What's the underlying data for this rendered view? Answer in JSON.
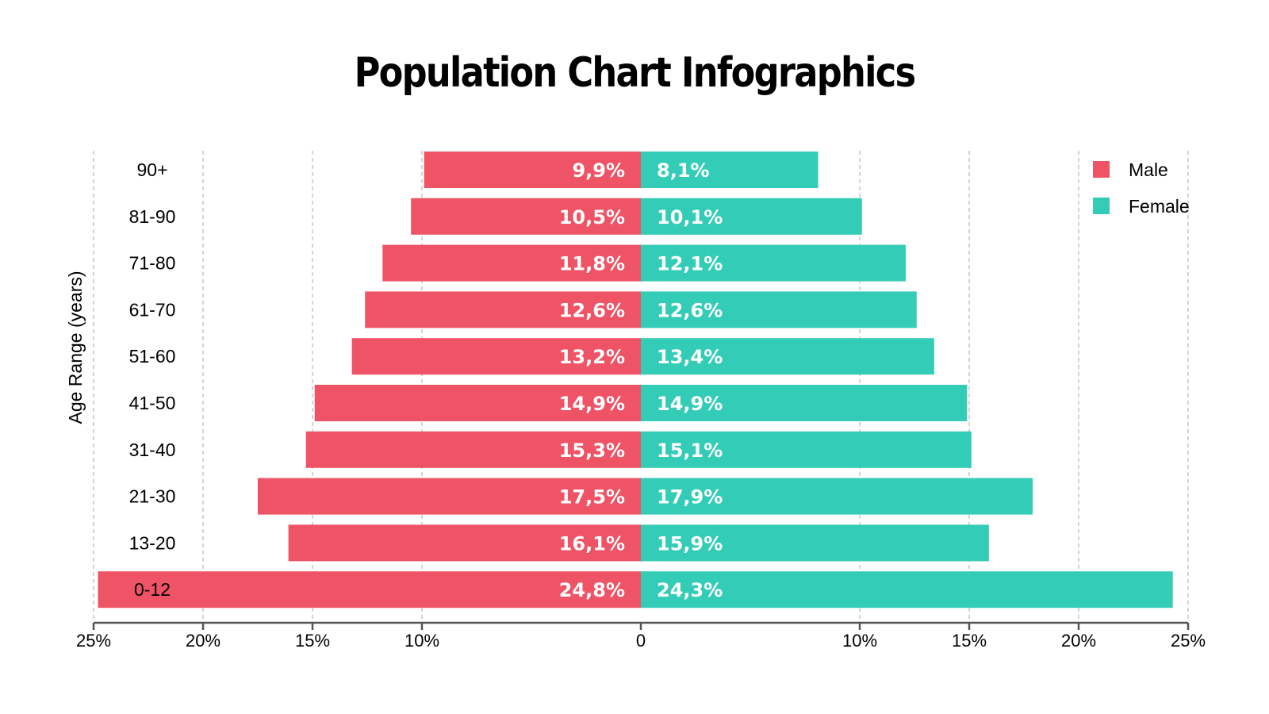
{
  "chart_data": {
    "type": "bar",
    "orientation": "horizontal-diverging",
    "title": "Population Chart Infographics",
    "ylabel": "Age Range (years)",
    "xlabel": "",
    "categories": [
      "90+",
      "81-90",
      "71-80",
      "61-70",
      "51-60",
      "41-50",
      "31-40",
      "21-30",
      "13-20",
      "0-12"
    ],
    "series": [
      {
        "name": "Male",
        "color": "#EE5366",
        "side": "left",
        "values": [
          9.9,
          10.5,
          11.8,
          12.6,
          13.2,
          14.9,
          15.3,
          17.5,
          16.1,
          24.8
        ],
        "labels": [
          "9,9%",
          "10,5%",
          "11,8%",
          "12,6%",
          "13,2%",
          "14,9%",
          "15,3%",
          "17,5%",
          "16,1%",
          "24,8%"
        ]
      },
      {
        "name": "Female",
        "color": "#33CCB6",
        "side": "right",
        "values": [
          8.1,
          10.1,
          12.1,
          12.6,
          13.4,
          14.9,
          15.1,
          17.9,
          15.9,
          24.3
        ],
        "labels": [
          "8,1%",
          "10,1%",
          "12,1%",
          "12,6%",
          "13,4%",
          "14,9%",
          "15,1%",
          "17,9%",
          "15,9%",
          "24,3%"
        ]
      }
    ],
    "xlim": [
      -25,
      25
    ],
    "xticks": [
      -25,
      -20,
      -15,
      -10,
      0,
      10,
      15,
      20,
      25
    ],
    "xtick_labels": [
      "25%",
      "20%",
      "15%",
      "10%",
      "0",
      "10%",
      "15%",
      "20%",
      "25%"
    ],
    "grid": "vertical dashed",
    "legend": "top-right"
  }
}
